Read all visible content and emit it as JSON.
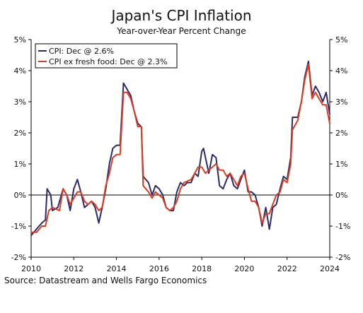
{
  "header": {
    "title": "Japan's CPI Inflation",
    "subtitle": "Year-over-Year Percent Change"
  },
  "footer": {
    "source": "Source: Datastream and Wells Fargo Economics"
  },
  "colors": {
    "cpi": "#2b2a6b",
    "core": "#e03a1e",
    "axis": "#000000",
    "zero_line": "#000000"
  },
  "chart_data": {
    "type": "line",
    "title": "Japan's CPI Inflation",
    "subtitle": "Year-over-Year Percent Change",
    "xlabel": "",
    "ylabel": "",
    "xlim": [
      2010,
      2024
    ],
    "ylim": [
      -2,
      5
    ],
    "x_ticks": [
      "2010",
      "2012",
      "2014",
      "2016",
      "2018",
      "2020",
      "2022",
      "2024"
    ],
    "y_ticks_left": [
      "-2%",
      "-1%",
      "0%",
      "1%",
      "2%",
      "3%",
      "4%",
      "5%"
    ],
    "y_ticks_right": [
      "-2%",
      "-1%",
      "0%",
      "1%",
      "2%",
      "3%",
      "4%",
      "5%"
    ],
    "y_tick_values": [
      -2,
      -1,
      0,
      1,
      2,
      3,
      4,
      5
    ],
    "grid": false,
    "legend_position": "top-left",
    "series": [
      {
        "name": "CPI: Dec @ 2.6%",
        "points": [
          [
            2010.0,
            -1.3
          ],
          [
            2010.25,
            -1.1
          ],
          [
            2010.5,
            -0.9
          ],
          [
            2010.67,
            -0.8
          ],
          [
            2010.75,
            0.2
          ],
          [
            2010.92,
            0.0
          ],
          [
            2011.0,
            -0.5
          ],
          [
            2011.25,
            -0.4
          ],
          [
            2011.5,
            0.2
          ],
          [
            2011.67,
            0.0
          ],
          [
            2011.83,
            -0.5
          ],
          [
            2012.0,
            0.2
          ],
          [
            2012.17,
            0.5
          ],
          [
            2012.33,
            0.1
          ],
          [
            2012.5,
            -0.4
          ],
          [
            2012.67,
            -0.3
          ],
          [
            2012.83,
            -0.2
          ],
          [
            2013.0,
            -0.4
          ],
          [
            2013.17,
            -0.9
          ],
          [
            2013.33,
            -0.4
          ],
          [
            2013.5,
            0.2
          ],
          [
            2013.67,
            1.0
          ],
          [
            2013.83,
            1.5
          ],
          [
            2014.0,
            1.6
          ],
          [
            2014.17,
            1.6
          ],
          [
            2014.33,
            3.6
          ],
          [
            2014.5,
            3.4
          ],
          [
            2014.67,
            3.2
          ],
          [
            2014.83,
            2.7
          ],
          [
            2015.0,
            2.3
          ],
          [
            2015.17,
            2.2
          ],
          [
            2015.25,
            0.6
          ],
          [
            2015.5,
            0.4
          ],
          [
            2015.67,
            0.0
          ],
          [
            2015.83,
            0.3
          ],
          [
            2016.0,
            0.2
          ],
          [
            2016.17,
            0.0
          ],
          [
            2016.33,
            -0.4
          ],
          [
            2016.5,
            -0.5
          ],
          [
            2016.67,
            -0.5
          ],
          [
            2016.83,
            0.1
          ],
          [
            2017.0,
            0.4
          ],
          [
            2017.17,
            0.3
          ],
          [
            2017.33,
            0.4
          ],
          [
            2017.5,
            0.4
          ],
          [
            2017.67,
            0.7
          ],
          [
            2017.83,
            0.6
          ],
          [
            2018.0,
            1.4
          ],
          [
            2018.08,
            1.5
          ],
          [
            2018.33,
            0.7
          ],
          [
            2018.5,
            1.3
          ],
          [
            2018.67,
            1.2
          ],
          [
            2018.83,
            0.3
          ],
          [
            2019.0,
            0.2
          ],
          [
            2019.17,
            0.5
          ],
          [
            2019.33,
            0.7
          ],
          [
            2019.5,
            0.3
          ],
          [
            2019.67,
            0.2
          ],
          [
            2019.83,
            0.5
          ],
          [
            2020.0,
            0.8
          ],
          [
            2020.17,
            0.1
          ],
          [
            2020.33,
            0.1
          ],
          [
            2020.5,
            0.0
          ],
          [
            2020.67,
            -0.4
          ],
          [
            2020.83,
            -1.0
          ],
          [
            2021.0,
            -0.4
          ],
          [
            2021.17,
            -1.1
          ],
          [
            2021.33,
            -0.4
          ],
          [
            2021.5,
            -0.3
          ],
          [
            2021.67,
            0.2
          ],
          [
            2021.83,
            0.6
          ],
          [
            2022.0,
            0.5
          ],
          [
            2022.17,
            1.2
          ],
          [
            2022.25,
            2.5
          ],
          [
            2022.5,
            2.5
          ],
          [
            2022.67,
            3.0
          ],
          [
            2022.83,
            3.8
          ],
          [
            2023.0,
            4.3
          ],
          [
            2023.17,
            3.2
          ],
          [
            2023.33,
            3.5
          ],
          [
            2023.5,
            3.3
          ],
          [
            2023.67,
            3.0
          ],
          [
            2023.83,
            3.3
          ],
          [
            2024.0,
            2.6
          ]
        ]
      },
      {
        "name": "CPI ex fresh food: Dec @ 2.3%",
        "points": [
          [
            2010.0,
            -1.2
          ],
          [
            2010.25,
            -1.2
          ],
          [
            2010.5,
            -1.0
          ],
          [
            2010.67,
            -1.0
          ],
          [
            2010.83,
            -0.5
          ],
          [
            2011.0,
            -0.4
          ],
          [
            2011.33,
            -0.5
          ],
          [
            2011.5,
            0.2
          ],
          [
            2011.67,
            0.0
          ],
          [
            2011.83,
            -0.3
          ],
          [
            2012.0,
            -0.1
          ],
          [
            2012.17,
            0.1
          ],
          [
            2012.33,
            0.1
          ],
          [
            2012.5,
            -0.2
          ],
          [
            2012.67,
            -0.3
          ],
          [
            2012.83,
            -0.2
          ],
          [
            2013.0,
            -0.3
          ],
          [
            2013.17,
            -0.5
          ],
          [
            2013.33,
            -0.4
          ],
          [
            2013.5,
            0.3
          ],
          [
            2013.67,
            0.7
          ],
          [
            2013.83,
            1.2
          ],
          [
            2014.0,
            1.3
          ],
          [
            2014.17,
            1.3
          ],
          [
            2014.33,
            3.3
          ],
          [
            2014.5,
            3.3
          ],
          [
            2014.67,
            3.1
          ],
          [
            2014.83,
            2.7
          ],
          [
            2015.0,
            2.2
          ],
          [
            2015.17,
            2.2
          ],
          [
            2015.25,
            0.3
          ],
          [
            2015.5,
            0.1
          ],
          [
            2015.67,
            -0.1
          ],
          [
            2015.83,
            0.1
          ],
          [
            2016.0,
            0.0
          ],
          [
            2016.17,
            -0.1
          ],
          [
            2016.33,
            -0.4
          ],
          [
            2016.5,
            -0.5
          ],
          [
            2016.67,
            -0.4
          ],
          [
            2016.83,
            -0.2
          ],
          [
            2017.0,
            0.2
          ],
          [
            2017.17,
            0.4
          ],
          [
            2017.5,
            0.5
          ],
          [
            2017.67,
            0.7
          ],
          [
            2017.83,
            0.9
          ],
          [
            2018.0,
            0.9
          ],
          [
            2018.17,
            0.7
          ],
          [
            2018.33,
            0.8
          ],
          [
            2018.5,
            0.9
          ],
          [
            2018.67,
            1.0
          ],
          [
            2018.83,
            0.8
          ],
          [
            2019.0,
            0.8
          ],
          [
            2019.17,
            0.6
          ],
          [
            2019.33,
            0.7
          ],
          [
            2019.5,
            0.5
          ],
          [
            2019.67,
            0.3
          ],
          [
            2019.83,
            0.6
          ],
          [
            2020.0,
            0.7
          ],
          [
            2020.17,
            0.2
          ],
          [
            2020.33,
            -0.2
          ],
          [
            2020.5,
            -0.2
          ],
          [
            2020.67,
            -0.4
          ],
          [
            2020.83,
            -0.9
          ],
          [
            2021.0,
            -0.6
          ],
          [
            2021.17,
            -0.6
          ],
          [
            2021.33,
            -0.3
          ],
          [
            2021.5,
            0.0
          ],
          [
            2021.67,
            0.1
          ],
          [
            2021.83,
            0.5
          ],
          [
            2022.0,
            0.4
          ],
          [
            2022.17,
            1.0
          ],
          [
            2022.25,
            2.1
          ],
          [
            2022.5,
            2.4
          ],
          [
            2022.67,
            3.0
          ],
          [
            2022.83,
            3.7
          ],
          [
            2023.0,
            4.2
          ],
          [
            2023.17,
            3.1
          ],
          [
            2023.33,
            3.3
          ],
          [
            2023.5,
            3.1
          ],
          [
            2023.67,
            2.9
          ],
          [
            2023.83,
            2.9
          ],
          [
            2024.0,
            2.3
          ]
        ]
      }
    ]
  }
}
